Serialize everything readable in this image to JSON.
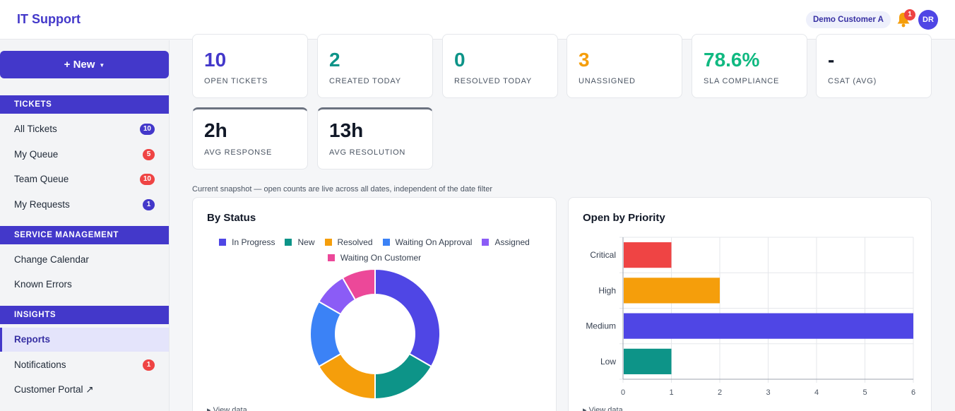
{
  "header": {
    "title": "IT Support",
    "customer": "Demo Customer A",
    "notification_count": "1",
    "avatar_initials": "DR",
    "accent_color": "#4338ca"
  },
  "sidebar": {
    "new_button": "+ New",
    "sections": [
      {
        "label": "TICKETS"
      },
      {
        "label": "SERVICE MANAGEMENT"
      },
      {
        "label": "INSIGHTS"
      }
    ],
    "tickets": [
      {
        "label": "All Tickets",
        "badge": "10",
        "badge_color": "blue"
      },
      {
        "label": "My Queue",
        "badge": "5",
        "badge_color": "red"
      },
      {
        "label": "Team Queue",
        "badge": "10",
        "badge_color": "red"
      },
      {
        "label": "My Requests",
        "badge": "1",
        "badge_color": "blue"
      }
    ],
    "service_management": [
      {
        "label": "Change Calendar"
      },
      {
        "label": "Known Errors"
      }
    ],
    "insights": [
      {
        "label": "Reports",
        "active": true
      },
      {
        "label": "Notifications",
        "badge": "1",
        "badge_color": "red"
      },
      {
        "label": "Customer Portal ↗"
      }
    ]
  },
  "kpis": [
    {
      "value": "10",
      "label": "OPEN TICKETS",
      "color": "#4338ca"
    },
    {
      "value": "2",
      "label": "CREATED TODAY",
      "color": "#0d9488"
    },
    {
      "value": "0",
      "label": "RESOLVED TODAY",
      "color": "#0d9488"
    },
    {
      "value": "3",
      "label": "UNASSIGNED",
      "color": "#f59e0b"
    },
    {
      "value": "78.6%",
      "label": "SLA COMPLIANCE",
      "color": "#10b981"
    },
    {
      "value": "-",
      "label": "CSAT (AVG)",
      "color": "#111827"
    },
    {
      "value": "2h",
      "label": "AVG RESPONSE",
      "color": "#111827"
    },
    {
      "value": "13h",
      "label": "AVG RESOLUTION",
      "color": "#111827"
    }
  ],
  "snapshot_note": "Current snapshot — open counts are live across all dates, independent of the date filter",
  "status_panel": {
    "title": "By Status",
    "view_data": "▸ View data"
  },
  "priority_panel": {
    "title": "Open by Priority",
    "view_data": "▸ View data"
  },
  "chart_data": [
    {
      "type": "pie",
      "title": "By Status",
      "donut": true,
      "legend_position": "top",
      "categories": [
        "In Progress",
        "New",
        "Resolved",
        "Waiting On Approval",
        "Assigned",
        "Waiting On Customer"
      ],
      "values": [
        4,
        2,
        2,
        2,
        1,
        1
      ],
      "colors": [
        "#4f46e5",
        "#0d9488",
        "#f59e0b",
        "#3b82f6",
        "#8b5cf6",
        "#ec4899"
      ]
    },
    {
      "type": "bar",
      "orientation": "horizontal",
      "title": "Open by Priority",
      "categories": [
        "Critical",
        "High",
        "Medium",
        "Low"
      ],
      "values": [
        1,
        2,
        6,
        1
      ],
      "colors": [
        "#ef4444",
        "#f59e0b",
        "#4f46e5",
        "#0d9488"
      ],
      "xlim": [
        0,
        6
      ],
      "xticks": [
        "0",
        "1",
        "2",
        "3",
        "4",
        "5",
        "6"
      ],
      "grid": true
    }
  ]
}
